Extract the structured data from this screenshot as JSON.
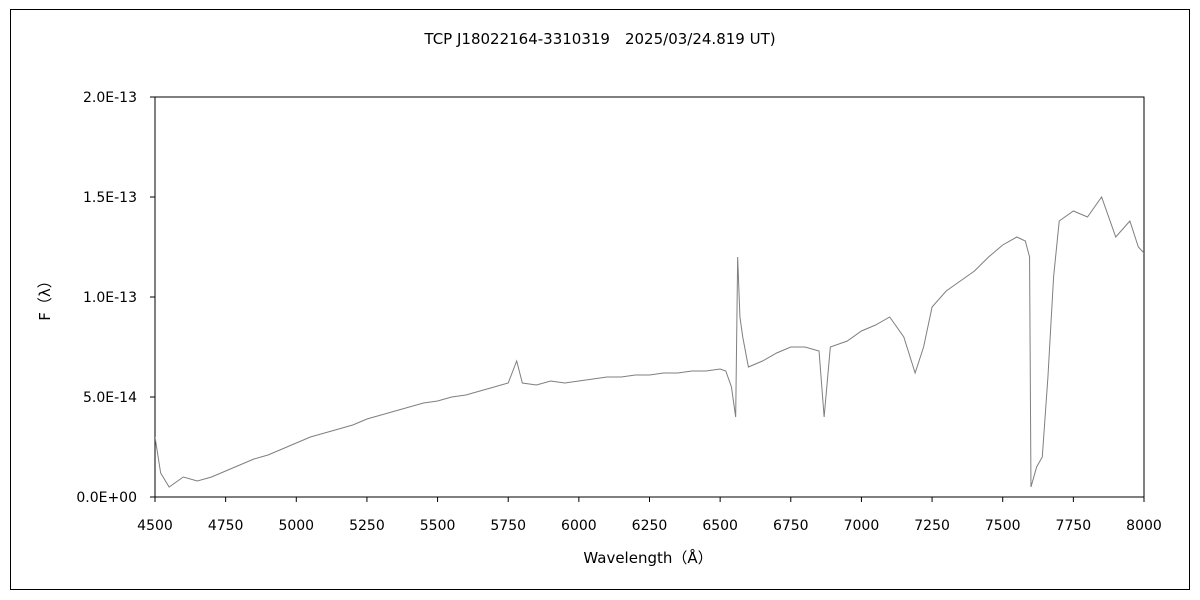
{
  "colors": {
    "background": "#ffffff",
    "frame": "#000000",
    "axis": "#000000",
    "series": "#7f7f7f"
  },
  "chart_data": {
    "type": "line",
    "title": "TCP J18022164-3310319　2025/03/24.819 UT)",
    "xlabel": "Wavelength（Å）",
    "ylabel": "F（λ）",
    "xlim": [
      4500,
      8000
    ],
    "ylim": [
      0,
      2e-13
    ],
    "grid": false,
    "legend": "none",
    "xticks": [
      4500,
      4750,
      5000,
      5250,
      5500,
      5750,
      6000,
      6250,
      6500,
      6750,
      7000,
      7250,
      7500,
      7750,
      8000
    ],
    "xtick_labels": [
      "4500",
      "4750",
      "5000",
      "5250",
      "5500",
      "5750",
      "6000",
      "6250",
      "6500",
      "6750",
      "7000",
      "7250",
      "7500",
      "7750",
      "8000"
    ],
    "yticks": [
      0,
      5e-14,
      1e-13,
      1.5e-13,
      2e-13
    ],
    "ytick_labels": [
      "0.0E+00",
      "5.0E-14",
      "1.0E-13",
      "1.5E-13",
      "2.0E-13"
    ],
    "series": [
      {
        "color": "#7f7f7f",
        "x": [
          4500,
          4520,
          4550,
          4600,
          4650,
          4700,
          4750,
          4800,
          4850,
          4900,
          4950,
          5000,
          5050,
          5100,
          5150,
          5200,
          5250,
          5300,
          5350,
          5400,
          5450,
          5500,
          5550,
          5600,
          5650,
          5700,
          5750,
          5780,
          5800,
          5850,
          5900,
          5950,
          6000,
          6050,
          6100,
          6150,
          6200,
          6250,
          6300,
          6350,
          6400,
          6450,
          6500,
          6520,
          6540,
          6555,
          6562,
          6570,
          6580,
          6600,
          6650,
          6700,
          6750,
          6800,
          6850,
          6868,
          6890,
          6950,
          7000,
          7050,
          7100,
          7150,
          7190,
          7220,
          7250,
          7300,
          7350,
          7400,
          7450,
          7500,
          7550,
          7580,
          7595,
          7600,
          7620,
          7640,
          7660,
          7680,
          7700,
          7750,
          7800,
          7850,
          7900,
          7950,
          7980,
          8000
        ],
        "y": [
          3e-14,
          1.2e-14,
          5e-15,
          1e-14,
          8e-15,
          1e-14,
          1.3e-14,
          1.6e-14,
          1.9e-14,
          2.1e-14,
          2.4e-14,
          2.7e-14,
          3e-14,
          3.2e-14,
          3.4e-14,
          3.6e-14,
          3.9e-14,
          4.1e-14,
          4.3e-14,
          4.5e-14,
          4.7e-14,
          4.8e-14,
          5e-14,
          5.1e-14,
          5.3e-14,
          5.5e-14,
          5.7e-14,
          6.8e-14,
          5.7e-14,
          5.6e-14,
          5.8e-14,
          5.7e-14,
          5.8e-14,
          5.9e-14,
          6e-14,
          6e-14,
          6.1e-14,
          6.1e-14,
          6.2e-14,
          6.2e-14,
          6.3e-14,
          6.3e-14,
          6.4e-14,
          6.3e-14,
          5.5e-14,
          4e-14,
          1.2e-13,
          9e-14,
          8e-14,
          6.5e-14,
          6.8e-14,
          7.2e-14,
          7.5e-14,
          7.5e-14,
          7.3e-14,
          4e-14,
          7.5e-14,
          7.8e-14,
          8.3e-14,
          8.6e-14,
          9e-14,
          8e-14,
          6.2e-14,
          7.5e-14,
          9.5e-14,
          1.03e-13,
          1.08e-13,
          1.13e-13,
          1.2e-13,
          1.26e-13,
          1.3e-13,
          1.28e-13,
          1.2e-13,
          5e-15,
          1.5e-14,
          2e-14,
          6e-14,
          1.1e-13,
          1.38e-13,
          1.43e-13,
          1.4e-13,
          1.5e-13,
          1.3e-13,
          1.38e-13,
          1.25e-13,
          1.22e-13
        ]
      }
    ]
  }
}
